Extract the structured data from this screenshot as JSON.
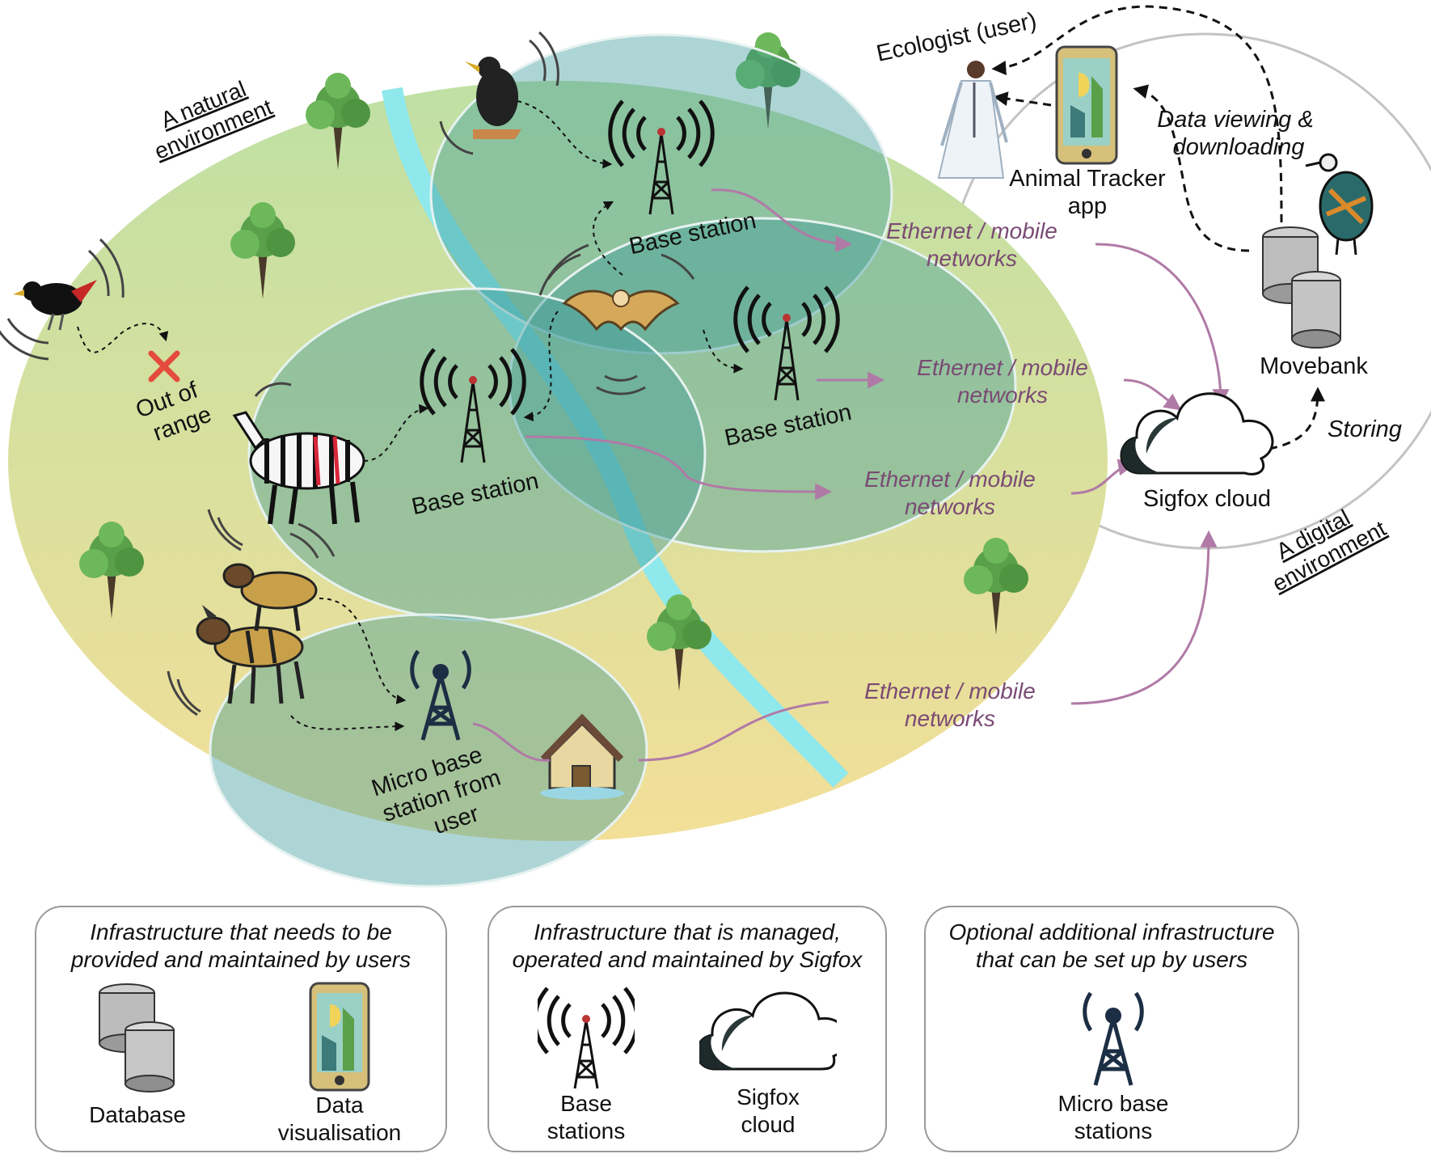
{
  "environments": {
    "natural": [
      "A natural",
      "environment"
    ],
    "digital": [
      "A digital",
      "environment"
    ]
  },
  "labels": {
    "ecologist": "Ecologist (user)",
    "app": [
      "Animal Tracker",
      "app"
    ],
    "data_viewing": [
      "Data viewing &",
      "downloading"
    ],
    "movebank": "Movebank",
    "storing": "Storing",
    "sigfox_cloud": "Sigfox cloud",
    "out_of_range": [
      "Out of",
      "range"
    ],
    "base_station_1": "Base station",
    "base_station_2": "Base station",
    "base_station_3": "Base station",
    "micro_base_station": [
      "Micro base",
      "station from",
      "user"
    ]
  },
  "networks": [
    [
      "Ethernet / mobile",
      "networks"
    ],
    [
      "Ethernet / mobile",
      "networks"
    ],
    [
      "Ethernet / mobile",
      "networks"
    ],
    [
      "Ethernet / mobile",
      "networks"
    ]
  ],
  "legend": [
    {
      "title": [
        "Infrastructure that needs to be",
        "provided and maintained by users"
      ],
      "items": [
        {
          "label": [
            "Database"
          ],
          "icon": "database-icon"
        },
        {
          "label": [
            "Data",
            "visualisation"
          ],
          "icon": "phone-app-icon"
        }
      ]
    },
    {
      "title": [
        "Infrastructure that is managed,",
        "operated and maintained by Sigfox"
      ],
      "items": [
        {
          "label": [
            "Base",
            "stations"
          ],
          "icon": "antenna-tower-icon"
        },
        {
          "label": [
            "Sigfox",
            "cloud"
          ],
          "icon": "cloud-icon"
        }
      ]
    },
    {
      "title": [
        "Optional additional infrastructure",
        "that can be set up by users"
      ],
      "items": [
        {
          "label": [
            "Micro base",
            "stations"
          ],
          "icon": "micro-tower-icon"
        }
      ]
    }
  ],
  "colors": {
    "natural_top": "#bfe0a4",
    "natural_bottom": "#f3df98",
    "coverage": "#3f9a9a",
    "river": "#8fe8ec",
    "network_arrow": "#b07aa6",
    "network_text": "#7a4a74"
  }
}
